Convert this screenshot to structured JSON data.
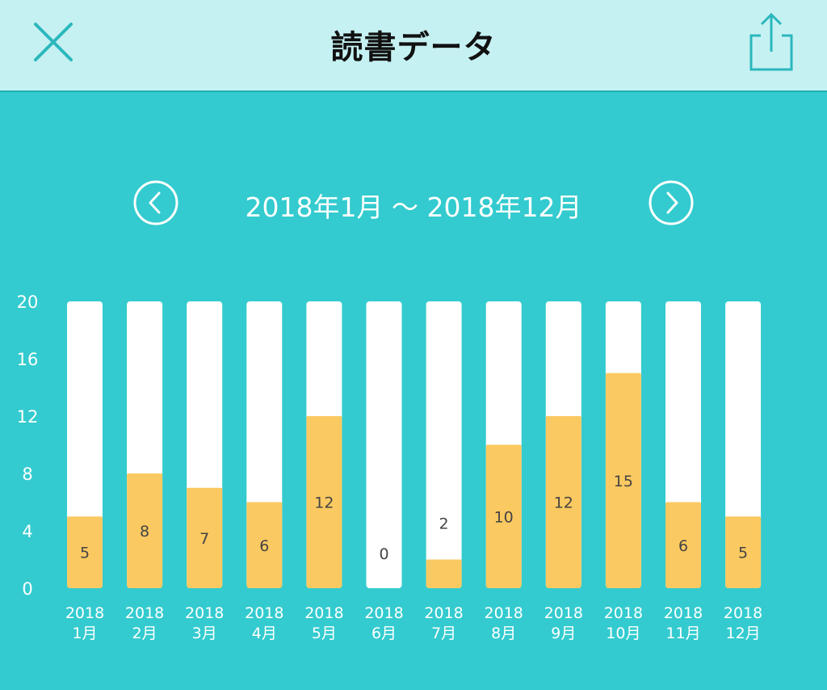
{
  "header": {
    "title": "読書データ",
    "close_icon": "close-icon",
    "share_icon": "share-icon"
  },
  "range": {
    "text": "2018年1月 〜 2018年12月",
    "prev_icon": "chevron-left-icon",
    "next_icon": "chevron-right-icon"
  },
  "colors": {
    "background": "#33cbcf",
    "header_bg": "#c6f1f2",
    "accent": "#2bb7bd",
    "bar_fill": "#fbc961",
    "bar_track": "#ffffff"
  },
  "chart_data": {
    "type": "bar",
    "title": "",
    "xlabel": "",
    "ylabel": "",
    "ylim": [
      0,
      20
    ],
    "yticks": [
      0,
      4,
      8,
      12,
      16,
      20
    ],
    "grid": false,
    "categories": [
      [
        "2018",
        "1月"
      ],
      [
        "2018",
        "2月"
      ],
      [
        "2018",
        "3月"
      ],
      [
        "2018",
        "4月"
      ],
      [
        "2018",
        "5月"
      ],
      [
        "2018",
        "6月"
      ],
      [
        "2018",
        "7月"
      ],
      [
        "2018",
        "8月"
      ],
      [
        "2018",
        "9月"
      ],
      [
        "2018",
        "10月"
      ],
      [
        "2018",
        "11月"
      ],
      [
        "2018",
        "12月"
      ]
    ],
    "values": [
      5,
      8,
      7,
      6,
      12,
      0,
      2,
      10,
      12,
      15,
      6,
      5
    ]
  }
}
